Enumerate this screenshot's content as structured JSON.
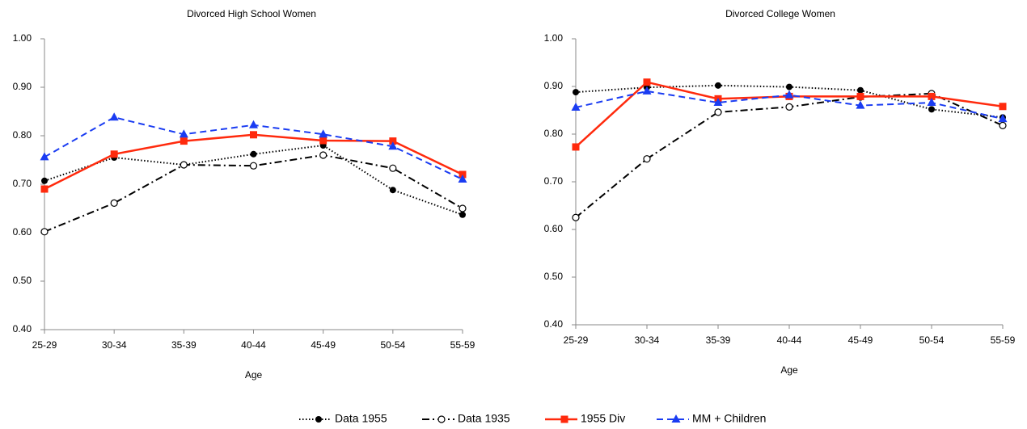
{
  "chart_data": [
    {
      "type": "line",
      "title": "Divorced High School Women",
      "x_label": "Age",
      "categories": [
        "25-29",
        "30-34",
        "35-39",
        "40-44",
        "45-49",
        "50-54",
        "55-59"
      ],
      "ylim": [
        0.4,
        1.0
      ],
      "yticks": [
        {
          "value": 0.4,
          "label": "0.40"
        },
        {
          "value": 0.5,
          "label": "0.50"
        },
        {
          "value": 0.6,
          "label": "0.60"
        },
        {
          "value": 0.7,
          "label": "0.70"
        },
        {
          "value": 0.8,
          "label": "0.80"
        },
        {
          "value": 0.9,
          "label": "0.90"
        },
        {
          "value": 1.0,
          "label": "1.00"
        }
      ],
      "series": [
        {
          "name": "Data 1955",
          "color": "#000000",
          "dash": "dotted",
          "marker": "filled-circle",
          "values": [
            0.707,
            0.755,
            0.74,
            0.762,
            0.78,
            0.688,
            0.637
          ]
        },
        {
          "name": "Data 1935",
          "color": "#000000",
          "dash": "dash-dot",
          "marker": "open-circle",
          "values": [
            0.602,
            0.661,
            0.74,
            0.738,
            0.76,
            0.733,
            0.65
          ]
        },
        {
          "name": "1955 Div",
          "color": "#ff2a0d",
          "dash": "solid",
          "marker": "square",
          "values": [
            0.69,
            0.762,
            0.789,
            0.802,
            0.79,
            0.789,
            0.72
          ]
        },
        {
          "name": "MM + Children",
          "color": "#1a3cf2",
          "dash": "dashed",
          "marker": "triangle",
          "values": [
            0.756,
            0.838,
            0.803,
            0.822,
            0.803,
            0.778,
            0.71
          ]
        }
      ]
    },
    {
      "type": "line",
      "title": "Divorced College Women",
      "x_label": "Age",
      "categories": [
        "25-29",
        "30-34",
        "35-39",
        "40-44",
        "45-49",
        "50-54",
        "55-59"
      ],
      "ylim": [
        0.4,
        1.0
      ],
      "yticks": [
        {
          "value": 0.4,
          "label": "0.40"
        },
        {
          "value": 0.5,
          "label": "0.50"
        },
        {
          "value": 0.6,
          "label": "0.60"
        },
        {
          "value": 0.7,
          "label": "0.70"
        },
        {
          "value": 0.8,
          "label": "0.80"
        },
        {
          "value": 0.9,
          "label": "0.90"
        },
        {
          "value": 1.0,
          "label": "1.00"
        }
      ],
      "series": [
        {
          "color": "#000000",
          "dash": "dotted",
          "marker": "filled-circle",
          "values": [
            0.888,
            0.898,
            0.902,
            0.899,
            0.892,
            0.852,
            0.835
          ]
        },
        {
          "color": "#000000",
          "dash": "dash-dot",
          "marker": "open-circle",
          "values": [
            0.625,
            0.748,
            0.846,
            0.857,
            0.878,
            0.885,
            0.818
          ]
        },
        {
          "color": "#ff2a0d",
          "dash": "solid",
          "marker": "square",
          "values": [
            0.773,
            0.909,
            0.874,
            0.879,
            0.879,
            0.879,
            0.858
          ]
        },
        {
          "color": "#1a3cf2",
          "dash": "dashed",
          "marker": "triangle",
          "values": [
            0.856,
            0.89,
            0.866,
            0.882,
            0.86,
            0.866,
            0.832
          ]
        }
      ]
    }
  ]
}
